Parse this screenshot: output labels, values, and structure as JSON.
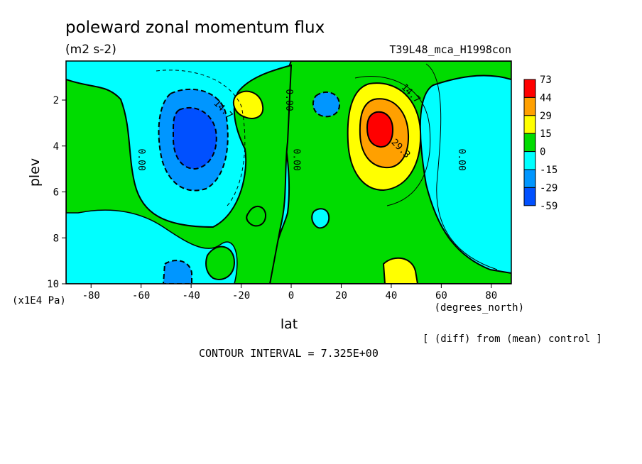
{
  "chart_data": {
    "type": "contour",
    "title": "poleward zonal momentum flux",
    "units": "(m2 s-2)",
    "run_label": "T39L48_mca_H1998con",
    "xlabel": "lat",
    "x_units": "(degrees_north)",
    "ylabel": "plev",
    "y_units": "(x1E4 Pa)",
    "xlim": [
      -90,
      88
    ],
    "ylim": [
      10,
      0.3
    ],
    "x_ticks": [
      -80,
      -60,
      -40,
      -20,
      0,
      20,
      40,
      60,
      80
    ],
    "x_tick_labels": [
      "-80",
      "-60",
      "-40",
      "-20",
      "0",
      "20",
      "40",
      "60",
      "80"
    ],
    "y_ticks": [
      2,
      4,
      6,
      8,
      10
    ],
    "y_tick_labels": [
      "2",
      "4",
      "6",
      "8",
      "10"
    ],
    "contour_interval_text": "CONTOUR INTERVAL = 7.325E+00",
    "note": "[ (diff) from (mean) control ]",
    "colorbar": {
      "labels": [
        "73",
        "44",
        "29",
        "15",
        "0",
        "-15",
        "-29",
        "-59"
      ],
      "colors": [
        "#ff0000",
        "#ffa000",
        "#ffff00",
        "#00dc00",
        "#00ffff",
        "#0096ff",
        "#0050ff"
      ]
    },
    "contour_labels": [
      {
        "text": "14.7",
        "lat": -28,
        "plev": 2.5
      },
      {
        "text": "0.00",
        "lat": -2,
        "plev": 2.0
      },
      {
        "text": "0.00",
        "lat": -61,
        "plev": 4.6
      },
      {
        "text": "0.00",
        "lat": 1,
        "plev": 4.6
      },
      {
        "text": "14.7",
        "lat": 47,
        "plev": 1.8
      },
      {
        "text": "29.3",
        "lat": 43,
        "plev": 4.2
      },
      {
        "text": "0.00",
        "lat": 67,
        "plev": 4.6
      }
    ],
    "regions": [
      {
        "name": "sh-jet-negative",
        "lat": -36,
        "plev": 3.3,
        "max_abs": -59,
        "sign": "negative"
      },
      {
        "name": "nh-jet-positive",
        "lat": 37,
        "plev": 3.0,
        "max": 73,
        "sign": "positive"
      },
      {
        "name": "subtropical-small-positive",
        "lat": -17,
        "plev": 2.0,
        "max": 20,
        "sign": "positive"
      },
      {
        "name": "nh-small-negative",
        "lat": 15,
        "plev": 2.0,
        "min": -22,
        "sign": "negative"
      },
      {
        "name": "near-surface-positive",
        "lat": 42,
        "plev": 9.2,
        "max": 22,
        "sign": "positive"
      },
      {
        "name": "near-surface-negative",
        "lat": -38,
        "plev": 9.2,
        "min": -20,
        "sign": "negative"
      }
    ]
  }
}
